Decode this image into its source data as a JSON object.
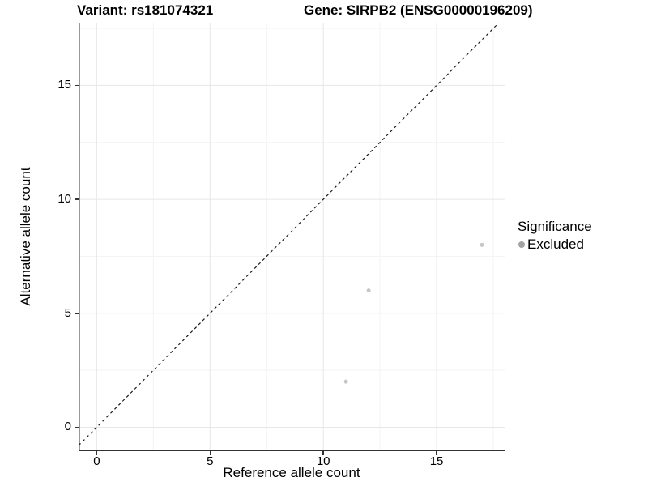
{
  "titles": {
    "variant": "Variant: rs181074321",
    "gene": "Gene: SIRPB2 (ENSG00000196209)"
  },
  "legend": {
    "title": "Significance",
    "items": [
      {
        "label": "Excluded",
        "color": "#a3a3a3"
      }
    ]
  },
  "chart_data": {
    "type": "scatter",
    "title": "Variant: rs181074321  |  Gene: SIRPB2 (ENSG00000196209)",
    "xlabel": "Reference allele count",
    "ylabel": "Alternative allele count",
    "xlim": [
      -0.8,
      18.0
    ],
    "ylim": [
      -1.05,
      17.75
    ],
    "x_ticks": [
      0,
      5,
      10,
      15
    ],
    "y_ticks": [
      0,
      5,
      10,
      15
    ],
    "minor_grid_step": 2.5,
    "grid": "major+minor",
    "legend_position": "right",
    "series": [
      {
        "name": "Excluded",
        "color": "#c6c6c6",
        "point_radius": 2.5,
        "points": [
          [
            11,
            2
          ],
          [
            12,
            6
          ],
          [
            17,
            8
          ]
        ]
      }
    ],
    "reference_line": {
      "type": "identity",
      "slope": 1,
      "intercept": 0,
      "style": "dashed",
      "color": "#1a1a1a"
    },
    "style": {
      "axis_color": "#333333",
      "grid_major_color": "#e7e7e7",
      "grid_minor_color": "#f3f3f3",
      "background": "#ffffff"
    }
  }
}
